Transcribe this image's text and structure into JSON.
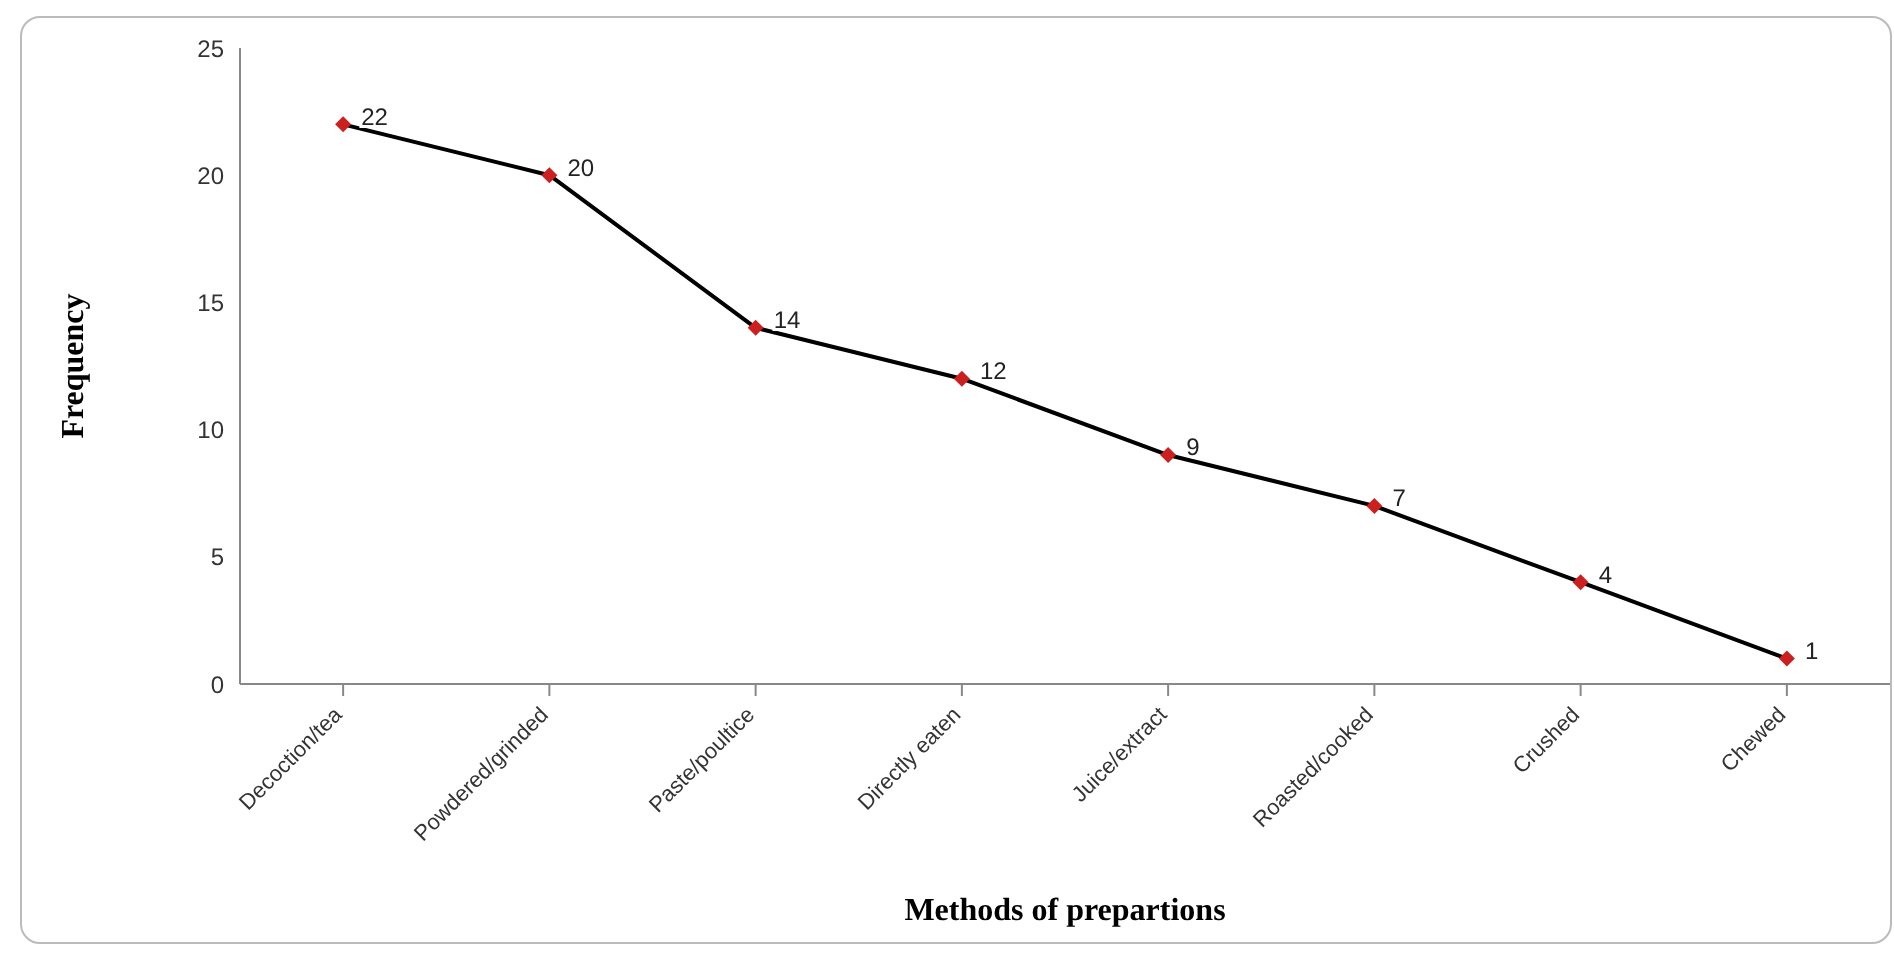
{
  "chart_data": {
    "type": "line",
    "xlabel": "Methods of prepartions",
    "ylabel": "Frequency",
    "categories": [
      "Decoction/tea",
      "Powdered/grinded",
      "Paste/poultice",
      "Directly eaten",
      "Juice/extract",
      "Roasted/cooked",
      "Crushed",
      "Chewed"
    ],
    "series": [
      {
        "color": "#000000",
        "colors": [
          "#cc1f1f",
          "#cc1f1f",
          "#cc1f1f",
          "#cc1f1f",
          "#cc1f1f",
          "#cc1f1f",
          "#cc1f1f",
          "#cc1f1f"
        ],
        "values": [
          22,
          20,
          14,
          12,
          9,
          7,
          4,
          1
        ]
      }
    ],
    "ylim": [
      0,
      25
    ],
    "yticks": [
      0,
      5,
      10,
      15,
      20,
      25
    ],
    "marker": "diamond",
    "line_style": "solid",
    "data_labels": true
  }
}
